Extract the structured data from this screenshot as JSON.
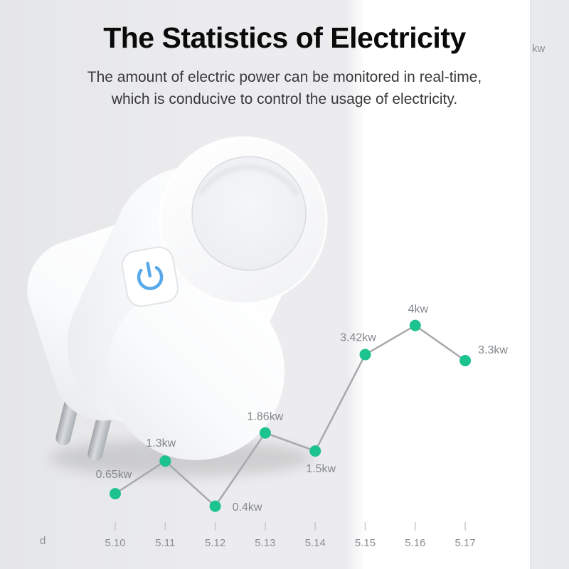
{
  "page": {
    "title": "The Statistics of Electricity",
    "subtitle_line1": "The amount of electric power can be monitored in real-time,",
    "subtitle_line2": "which is conducive to control the usage of electricity."
  },
  "colors": {
    "point_green": "#1dc38f",
    "line_gray": "#a6a9ac",
    "power_button_blue": "#57a9ea",
    "background_gray": "#ececee",
    "panel_white": "#ffffff"
  },
  "chart_data": {
    "type": "line",
    "title": "The Statistics of Electricity",
    "x": [
      "5.10",
      "5.11",
      "5.12",
      "5.13",
      "5.14",
      "5.15",
      "5.16",
      "5.17"
    ],
    "values": [
      0.65,
      1.3,
      0.4,
      1.86,
      1.5,
      3.42,
      4,
      3.3
    ],
    "point_labels": [
      "0.65kw",
      "1.3kw",
      "0.4kw",
      "1.86kw",
      "1.5kw",
      "3.42kw",
      "4kw",
      "3.3kw"
    ],
    "xlabel": "d",
    "ylabel": "kw",
    "ylim": [
      0,
      4.5
    ],
    "grid": false,
    "legend": "none",
    "line_color": "#a6a9ac",
    "point_color": "#1dc38f",
    "label_offsets": [
      [
        -2,
        -22,
        "middle"
      ],
      [
        -6,
        -20,
        "middle"
      ],
      [
        24,
        6,
        "start"
      ],
      [
        0,
        -18,
        "middle"
      ],
      [
        8,
        30,
        "middle"
      ],
      [
        -10,
        -19,
        "middle"
      ],
      [
        4,
        -18,
        "middle"
      ],
      [
        18,
        -10,
        "start"
      ]
    ]
  }
}
